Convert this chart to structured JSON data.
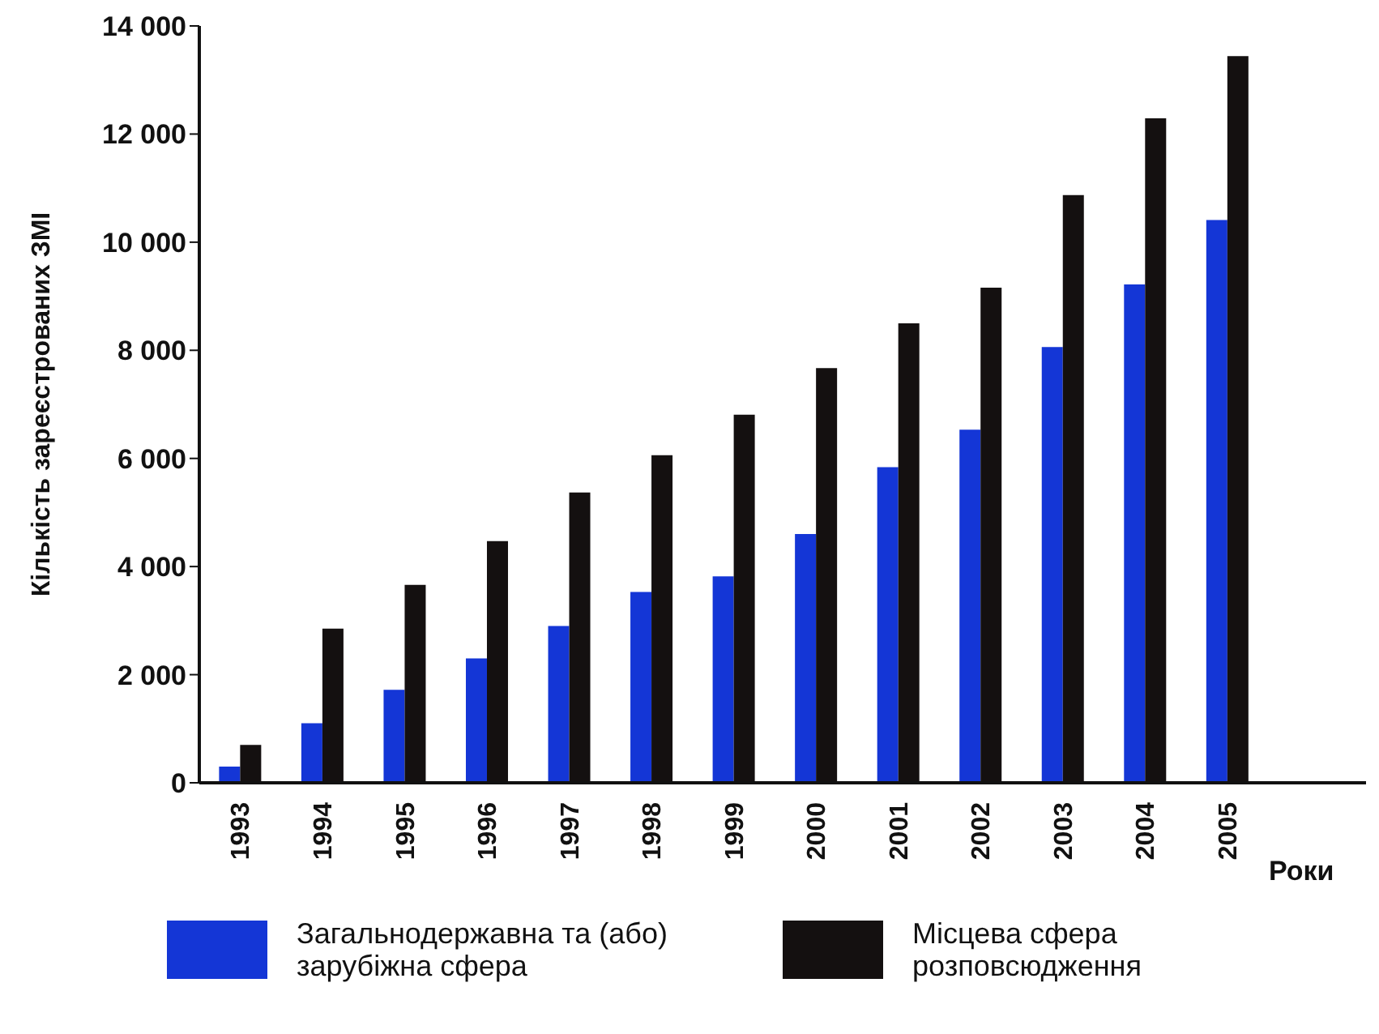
{
  "chart_data": {
    "type": "bar",
    "xlabel": "Роки",
    "ylabel": "Кількість зареєстрованих ЗМІ",
    "categories": [
      "1993",
      "1994",
      "1995",
      "1996",
      "1997",
      "1998",
      "1999",
      "2000",
      "2001",
      "2002",
      "2003",
      "2004",
      "2005"
    ],
    "series": [
      {
        "name": "Загальнодержавна та (або) зарубіжна сфера",
        "color": "#1436d6",
        "values": [
          300,
          1100,
          1720,
          2300,
          2900,
          3530,
          3820,
          4600,
          5840,
          6530,
          8060,
          9220,
          10410
        ]
      },
      {
        "name": "Місцева сфера розповсюдження",
        "color": "#141010",
        "values": [
          700,
          2850,
          3660,
          4470,
          5370,
          6060,
          6810,
          7670,
          8500,
          9160,
          10870,
          12290,
          13440
        ]
      }
    ],
    "ylim": [
      0,
      14000
    ],
    "yticks": [
      0,
      {
        "value": 2000,
        "label": "2 000"
      },
      {
        "value": 4000,
        "label": "4 000"
      },
      {
        "value": 6000,
        "label": "6 000"
      },
      {
        "value": 8000,
        "label": "8 000"
      },
      {
        "value": 10000,
        "label": "10 000"
      },
      {
        "value": 12000,
        "label": "12 000"
      },
      {
        "value": 14000,
        "label": "14 000"
      }
    ],
    "grid": false,
    "legend": "bottom"
  }
}
